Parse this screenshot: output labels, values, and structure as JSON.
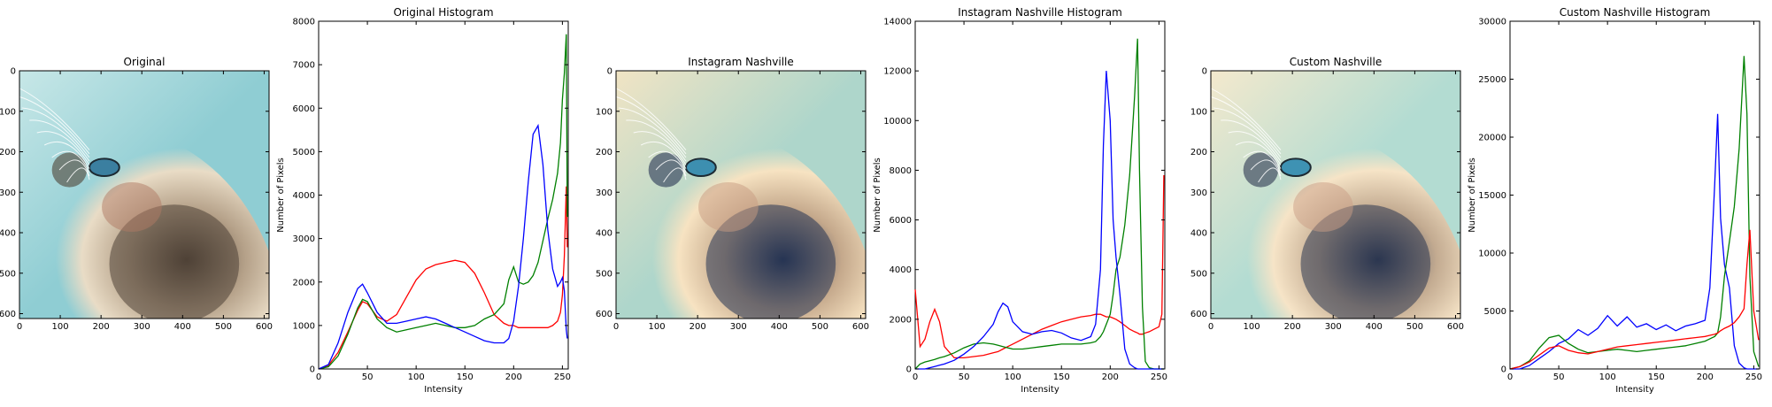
{
  "chart_data": [
    {
      "type": "image",
      "title": "Original",
      "image_variant": "original",
      "xticks": [
        0,
        100,
        200,
        300,
        400,
        500,
        600
      ],
      "yticks": [
        0,
        100,
        200,
        300,
        400,
        500,
        600
      ],
      "xlim": [
        0,
        612
      ],
      "ylim": [
        612,
        0
      ],
      "palette": {
        "bg": "#8fcdd3",
        "bg2": "#c7e7e7",
        "fur_light": "#e9dcc6",
        "fur_mid": "#b5a189",
        "fur_dark": "#4f4236",
        "fur_red": "#b07a63",
        "eye": "#3b7fa0"
      }
    },
    {
      "type": "line",
      "title": "Original Histogram",
      "xlabel": "Intensity",
      "ylabel": "Number of Pixels",
      "xlim": [
        0,
        256
      ],
      "ylim": [
        0,
        8000
      ],
      "xticks": [
        0,
        50,
        100,
        150,
        200,
        250
      ],
      "yticks": [
        0,
        1000,
        2000,
        3000,
        4000,
        5000,
        6000,
        7000,
        8000
      ],
      "x": [
        0,
        10,
        20,
        30,
        40,
        45,
        50,
        60,
        70,
        80,
        90,
        100,
        110,
        120,
        130,
        140,
        150,
        160,
        170,
        180,
        190,
        195,
        200,
        205,
        210,
        215,
        220,
        225,
        230,
        235,
        240,
        245,
        248,
        250,
        252,
        254,
        255
      ],
      "series": [
        {
          "color": "#ff0000",
          "values": [
            0,
            80,
            380,
            850,
            1350,
            1550,
            1500,
            1200,
            1100,
            1250,
            1650,
            2050,
            2300,
            2400,
            2450,
            2500,
            2450,
            2200,
            1750,
            1250,
            1050,
            1000,
            1000,
            950,
            950,
            950,
            950,
            950,
            950,
            950,
            1000,
            1100,
            1300,
            1700,
            2600,
            4200,
            2800
          ]
        },
        {
          "color": "#008000",
          "values": [
            0,
            50,
            300,
            800,
            1400,
            1600,
            1550,
            1150,
            950,
            850,
            900,
            950,
            1000,
            1050,
            1000,
            950,
            950,
            1000,
            1150,
            1250,
            1500,
            2050,
            2350,
            2000,
            1950,
            2000,
            2150,
            2450,
            2950,
            3450,
            3900,
            4500,
            5200,
            6200,
            6800,
            7700,
            3500
          ]
        },
        {
          "color": "#0000ff",
          "values": [
            0,
            100,
            600,
            1300,
            1850,
            1950,
            1750,
            1300,
            1050,
            1050,
            1100,
            1150,
            1200,
            1150,
            1050,
            950,
            850,
            750,
            650,
            600,
            600,
            700,
            1100,
            1900,
            3000,
            4300,
            5400,
            5600,
            4700,
            3200,
            2300,
            1900,
            2000,
            2100,
            1800,
            900,
            700
          ]
        }
      ]
    },
    {
      "type": "image",
      "title": "Instagram Nashville",
      "image_variant": "nashville",
      "xticks": [
        0,
        100,
        200,
        300,
        400,
        500,
        600
      ],
      "yticks": [
        0,
        100,
        200,
        300,
        400,
        500,
        600
      ],
      "xlim": [
        0,
        612
      ],
      "ylim": [
        612,
        0
      ],
      "palette": {
        "bg": "#aed6cb",
        "bg2": "#f1e4c4",
        "fur_light": "#f7e3c2",
        "fur_mid": "#c5a98c",
        "fur_dark": "#263453",
        "fur_red": "#c79b82",
        "eye": "#3d8fb0"
      }
    },
    {
      "type": "line",
      "title": "Instagram Nashville Histogram",
      "xlabel": "Intensity",
      "ylabel": "Number of Pixels",
      "xlim": [
        0,
        256
      ],
      "ylim": [
        0,
        14000
      ],
      "xticks": [
        0,
        50,
        100,
        150,
        200,
        250
      ],
      "yticks": [
        0,
        2000,
        4000,
        6000,
        8000,
        10000,
        12000,
        14000
      ],
      "x": [
        0,
        5,
        10,
        15,
        20,
        25,
        30,
        40,
        50,
        60,
        70,
        80,
        85,
        90,
        95,
        100,
        110,
        120,
        130,
        140,
        150,
        160,
        170,
        180,
        185,
        190,
        193,
        196,
        200,
        203,
        206,
        210,
        215,
        220,
        225,
        228,
        230,
        233,
        236,
        240,
        245,
        250,
        253,
        255
      ],
      "series": [
        {
          "color": "#ff0000",
          "values": [
            3200,
            900,
            1200,
            1900,
            2400,
            1900,
            900,
            450,
            450,
            500,
            550,
            650,
            700,
            800,
            900,
            1000,
            1200,
            1400,
            1600,
            1750,
            1900,
            2000,
            2100,
            2150,
            2200,
            2200,
            2150,
            2100,
            2100,
            2050,
            2000,
            1900,
            1750,
            1600,
            1500,
            1450,
            1400,
            1400,
            1450,
            1500,
            1600,
            1700,
            2200,
            7800
          ]
        },
        {
          "color": "#008000",
          "values": [
            0,
            200,
            280,
            330,
            380,
            450,
            500,
            650,
            850,
            1000,
            1050,
            1000,
            950,
            900,
            850,
            800,
            800,
            850,
            900,
            950,
            1000,
            1000,
            1000,
            1050,
            1100,
            1300,
            1500,
            1800,
            2200,
            3000,
            4000,
            4500,
            5800,
            7800,
            11000,
            13300,
            8000,
            2500,
            300,
            50,
            0,
            0,
            0,
            0
          ]
        },
        {
          "color": "#0000ff",
          "values": [
            0,
            0,
            0,
            50,
            100,
            150,
            200,
            350,
            600,
            900,
            1300,
            1800,
            2300,
            2650,
            2500,
            1900,
            1500,
            1400,
            1500,
            1550,
            1450,
            1250,
            1150,
            1300,
            1800,
            4000,
            9000,
            12000,
            10000,
            6000,
            4500,
            3000,
            800,
            200,
            50,
            0,
            0,
            0,
            0,
            0,
            0,
            0,
            0,
            0
          ]
        }
      ]
    },
    {
      "type": "image",
      "title": "Custom Nashville",
      "image_variant": "custom",
      "xticks": [
        0,
        100,
        200,
        300,
        400,
        500,
        600
      ],
      "yticks": [
        0,
        100,
        200,
        300,
        400,
        500,
        600
      ],
      "xlim": [
        0,
        612
      ],
      "ylim": [
        612,
        0
      ],
      "palette": {
        "bg": "#b3dcd2",
        "bg2": "#f4e9cd",
        "fur_light": "#f6e4c7",
        "fur_mid": "#c3ab91",
        "fur_dark": "#2b3650",
        "fur_red": "#c99e86",
        "eye": "#3e92b3"
      }
    },
    {
      "type": "line",
      "title": "Custom Nashville Histogram",
      "xlabel": "Intensity",
      "ylabel": "Number of Pixels",
      "xlim": [
        0,
        256
      ],
      "ylim": [
        0,
        30000
      ],
      "xticks": [
        0,
        50,
        100,
        150,
        200,
        250
      ],
      "yticks": [
        0,
        5000,
        10000,
        15000,
        20000,
        25000,
        30000
      ],
      "x": [
        0,
        10,
        20,
        30,
        40,
        50,
        60,
        70,
        80,
        90,
        100,
        110,
        120,
        130,
        140,
        150,
        160,
        170,
        180,
        190,
        200,
        205,
        210,
        213,
        216,
        220,
        225,
        230,
        235,
        240,
        243,
        246,
        250,
        255
      ],
      "series": [
        {
          "color": "#0000ff",
          "values": [
            0,
            0,
            300,
            900,
            1500,
            2200,
            2600,
            3400,
            2900,
            3500,
            4600,
            3700,
            4500,
            3600,
            3900,
            3400,
            3800,
            3300,
            3700,
            3900,
            4200,
            7000,
            16000,
            22000,
            13000,
            9000,
            7000,
            2000,
            500,
            100,
            0,
            0,
            0,
            0
          ]
        },
        {
          "color": "#008000",
          "values": [
            0,
            200,
            700,
            1800,
            2700,
            2900,
            2200,
            1700,
            1400,
            1500,
            1600,
            1700,
            1600,
            1500,
            1600,
            1700,
            1800,
            1900,
            2000,
            2200,
            2400,
            2600,
            2800,
            3100,
            4500,
            8000,
            11000,
            14000,
            19000,
            27000,
            22000,
            8000,
            1500,
            200
          ]
        },
        {
          "color": "#ff0000",
          "values": [
            0,
            200,
            600,
            1200,
            1800,
            2000,
            1600,
            1400,
            1300,
            1500,
            1700,
            1900,
            2000,
            2100,
            2200,
            2300,
            2400,
            2500,
            2600,
            2700,
            2800,
            2900,
            3000,
            3100,
            3300,
            3500,
            3700,
            4000,
            4500,
            5200,
            9000,
            12000,
            5000,
            2500
          ]
        }
      ]
    }
  ]
}
